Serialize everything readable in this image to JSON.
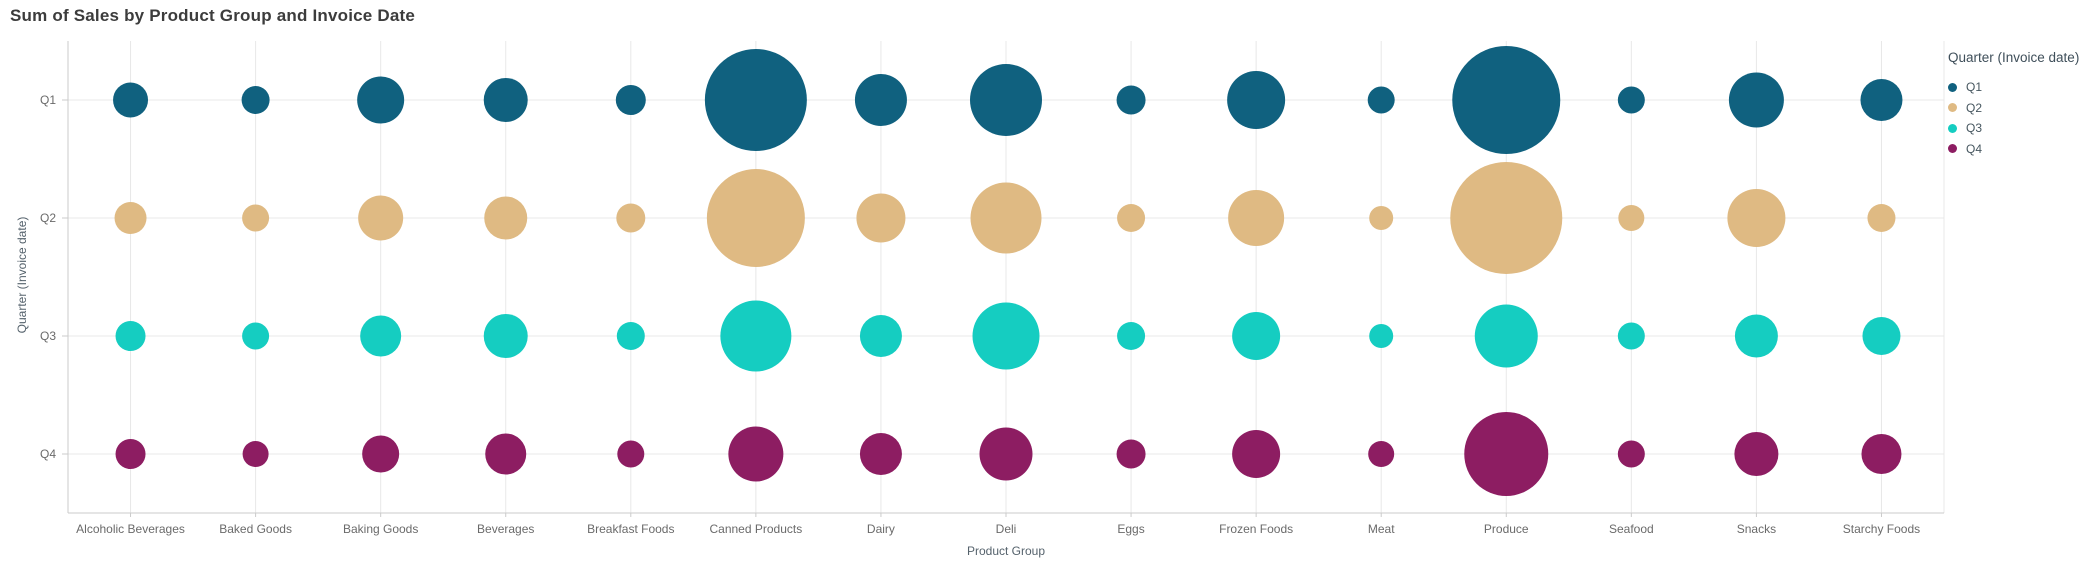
{
  "title": "Sum of Sales by Product Group and Invoice Date",
  "chart_data": {
    "type": "scatter",
    "subtype": "bubble",
    "title": "Sum of Sales by Product Group and Invoice Date",
    "xlabel": "Product Group",
    "ylabel": "Quarter (Invoice date)",
    "size_note": "Bubble size encodes Sum of Sales; no numeric values are labeled in the chart. Sizes recorded as on-screen radius in px.",
    "grid": true,
    "categories": [
      "Alcoholic Beverages",
      "Baked Goods",
      "Baking Goods",
      "Beverages",
      "Breakfast Foods",
      "Canned Products",
      "Dairy",
      "Deli",
      "Eggs",
      "Frozen Foods",
      "Meat",
      "Produce",
      "Seafood",
      "Snacks",
      "Starchy Foods"
    ],
    "y_categories": [
      "Q1",
      "Q2",
      "Q3",
      "Q4"
    ],
    "series": [
      {
        "name": "Q1",
        "color": "#10617F",
        "bubble_radius_px": [
          17.5,
          14,
          23.5,
          22,
          15,
          51,
          26,
          36,
          14.5,
          29,
          13.5,
          54,
          13.5,
          27.5,
          21
        ]
      },
      {
        "name": "Q2",
        "color": "#DFBA83",
        "bubble_radius_px": [
          16,
          13.5,
          22.5,
          21.5,
          14.5,
          49,
          24.5,
          35.5,
          14,
          28,
          12,
          56,
          13,
          29,
          14
        ]
      },
      {
        "name": "Q3",
        "color": "#15CDC1",
        "bubble_radius_px": [
          15,
          13.5,
          20.5,
          22,
          14,
          35.5,
          21,
          33.5,
          14,
          24,
          12,
          31.5,
          13.5,
          21.5,
          19
        ]
      },
      {
        "name": "Q4",
        "color": "#8D1D62",
        "bubble_radius_px": [
          15,
          13,
          18.5,
          20.5,
          13.5,
          27.5,
          21,
          26.5,
          14.5,
          24,
          13,
          42,
          13.5,
          22,
          20
        ]
      }
    ],
    "legend": {
      "title": "Quarter (Invoice date)",
      "position": "top-right",
      "entries": [
        "Q1",
        "Q2",
        "Q3",
        "Q4"
      ]
    },
    "colors": {
      "grid_line": "#e8e8e8",
      "axis_line": "#cbcbcb",
      "tick_label": "#6a6a6a",
      "axis_title": "#55626c",
      "chart_title": "#3c3c3c",
      "background": "#ffffff"
    }
  }
}
